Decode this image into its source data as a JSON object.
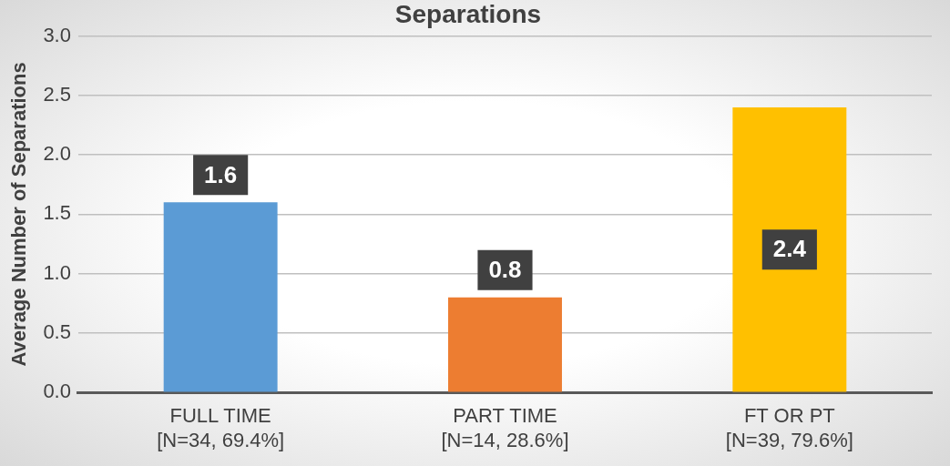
{
  "chart_data": {
    "type": "bar",
    "title": "Separations",
    "ylabel": "Average Number of Separations",
    "categories": [
      "FULL TIME\n[N=34, 69.4%]",
      "PART TIME\n[N=14, 28.6%]",
      "FT OR PT\n[N=39, 79.6%]"
    ],
    "values": [
      1.6,
      0.8,
      2.4
    ],
    "colors": [
      "#5b9bd5",
      "#ed7d31",
      "#ffc000"
    ],
    "ylim": [
      0,
      3
    ],
    "yticks": [
      {
        "value": 0,
        "label": "0.0"
      },
      0.5,
      {
        "value": 1,
        "label": "1.0"
      },
      1.5,
      {
        "value": 2,
        "label": "2.0"
      },
      2.5,
      {
        "value": 3,
        "label": "3.0"
      }
    ],
    "grid": "y",
    "data_labels": true
  }
}
